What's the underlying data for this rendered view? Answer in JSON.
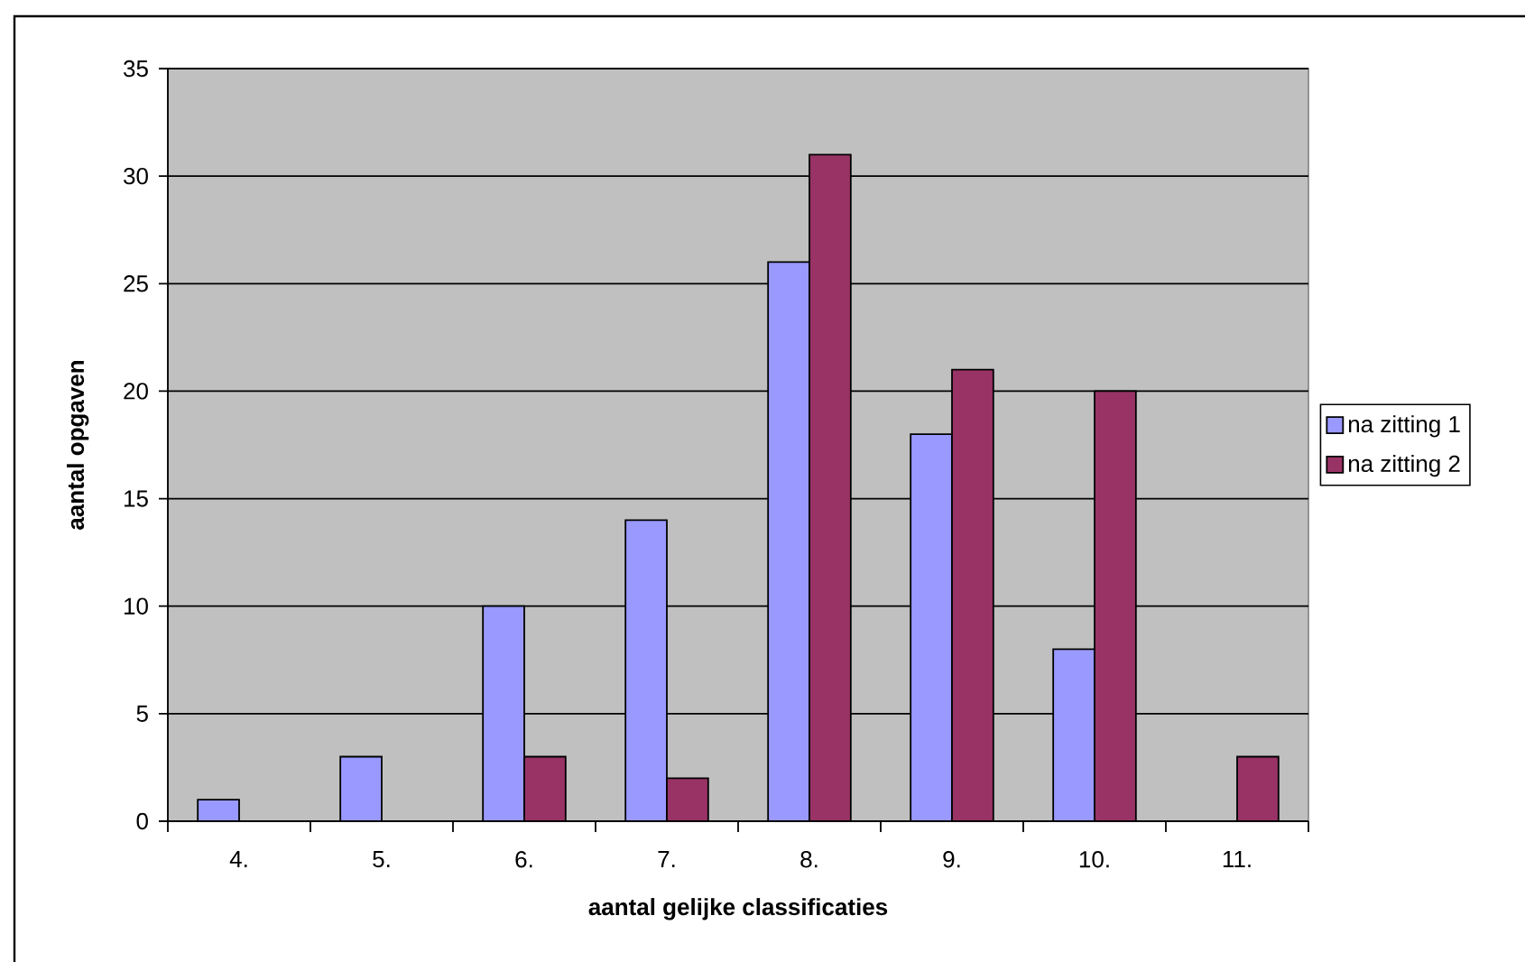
{
  "chart_data": {
    "type": "bar",
    "xlabel": "aantal gelijke classificaties",
    "ylabel": "aantal opgaven",
    "categories": [
      "4.",
      "5.",
      "6.",
      "7.",
      "8.",
      "9.",
      "10.",
      "11."
    ],
    "series": [
      {
        "name": "na zitting 1",
        "color": "#9999ff",
        "values": [
          1,
          3,
          10,
          14,
          26,
          18,
          8,
          null
        ]
      },
      {
        "name": "na zitting 2",
        "color": "#993366",
        "values": [
          null,
          null,
          3,
          2,
          31,
          21,
          20,
          3
        ]
      }
    ],
    "ylim": [
      0,
      35
    ],
    "yticks": [
      0,
      5,
      10,
      15,
      20,
      25,
      30,
      35
    ],
    "grid": "y",
    "legend": "right"
  }
}
